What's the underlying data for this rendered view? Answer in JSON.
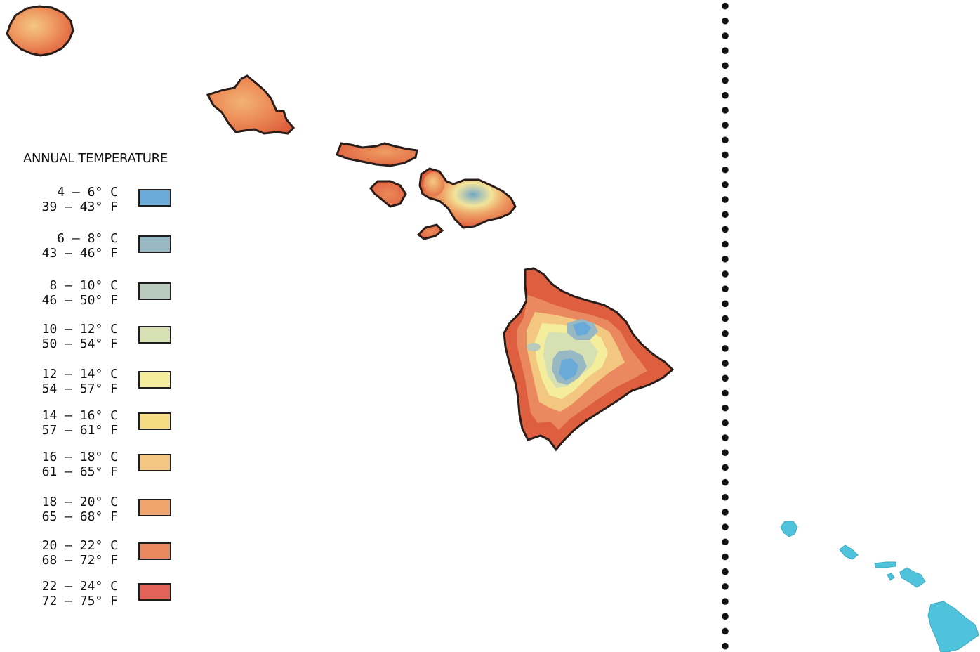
{
  "legend": {
    "title": "ANNUAL TEMPERATURE",
    "items": [
      {
        "celsius": "4 – 6° C",
        "fahrenheit": "39 – 43° F",
        "color": "#6aaad9"
      },
      {
        "celsius": "6 – 8° C",
        "fahrenheit": "43 – 46° F",
        "color": "#98b8c4"
      },
      {
        "celsius": "8 – 10° C",
        "fahrenheit": "46 – 50° F",
        "color": "#b8cbbd"
      },
      {
        "celsius": "10 – 12° C",
        "fahrenheit": "50 – 54° F",
        "color": "#d6e0b3"
      },
      {
        "celsius": "12 – 14° C",
        "fahrenheit": "54 – 57° F",
        "color": "#f3ed9c"
      },
      {
        "celsius": "14 – 16° C",
        "fahrenheit": "57 – 61° F",
        "color": "#f5dc83"
      },
      {
        "celsius": "16 – 18° C",
        "fahrenheit": "61 – 65° F",
        "color": "#f4c780"
      },
      {
        "celsius": "18 – 20° C",
        "fahrenheit": "65 – 68° F",
        "color": "#f0a36c"
      },
      {
        "celsius": "20 – 22° C",
        "fahrenheit": "68 – 72° F",
        "color": "#ea885f"
      },
      {
        "celsius": "22 – 24° C",
        "fahrenheit": "72 – 75° F",
        "color": "#e2625a"
      }
    ]
  },
  "colors": {
    "outline": "#2a1c18",
    "inset_islands": "#4fc3dc",
    "divider": "#111111"
  }
}
